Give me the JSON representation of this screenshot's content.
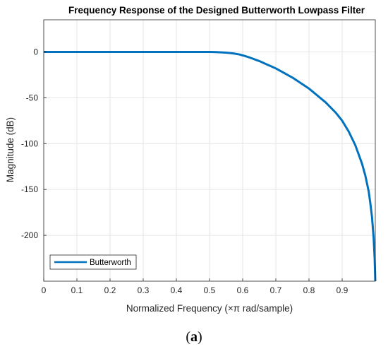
{
  "chart_data": {
    "type": "line",
    "title": "Frequency Response of the Designed Butterworth Lowpass Filter",
    "xlabel": "Normalized Frequency (×π rad/sample)",
    "ylabel": "Magnitude (dB)",
    "xlim": [
      0,
      1
    ],
    "ylim": [
      -250,
      35
    ],
    "x_ticks": [
      0,
      0.1,
      0.2,
      0.3,
      0.4,
      0.5,
      0.6,
      0.7,
      0.8,
      0.9
    ],
    "x_tick_labels": [
      "0",
      "0.1",
      "0.2",
      "0.3",
      "0.4",
      "0.5",
      "0.6",
      "0.7",
      "0.8",
      "0.9"
    ],
    "y_ticks": [
      0,
      -50,
      -100,
      -150,
      -200
    ],
    "y_tick_labels": [
      "0",
      "-50",
      "-100",
      "-150",
      "-200"
    ],
    "grid": true,
    "legend_position": "bottom-left",
    "colors": {
      "series": "#0072bd",
      "grid": "#e6e6e6",
      "axes": "#262626"
    },
    "series": [
      {
        "name": "Butterworth",
        "x": [
          0,
          0.1,
          0.2,
          0.3,
          0.4,
          0.45,
          0.5,
          0.52,
          0.55,
          0.57,
          0.59,
          0.6,
          0.62,
          0.65,
          0.7,
          0.75,
          0.8,
          0.85,
          0.88,
          0.9,
          0.92,
          0.94,
          0.96,
          0.97,
          0.98,
          0.985,
          0.99,
          0.995,
          0.998,
          1.0
        ],
        "y": [
          0,
          0,
          0,
          0,
          0,
          0,
          0,
          -0.2,
          -0.8,
          -1.6,
          -2.8,
          -3.8,
          -6,
          -10,
          -18,
          -28,
          -40,
          -55,
          -66,
          -75,
          -87,
          -102,
          -122,
          -135,
          -152,
          -165,
          -180,
          -203,
          -225,
          -250
        ]
      }
    ]
  },
  "caption": {
    "open": "(",
    "letter": "a",
    "close": ")"
  }
}
